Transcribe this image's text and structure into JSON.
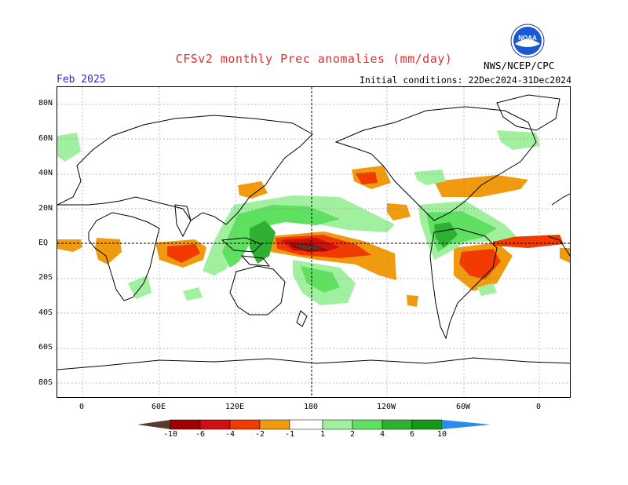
{
  "header": {
    "title": "CFSv2 monthly Prec anomalies (mm/day)",
    "month": "Feb 2025",
    "initial_conditions": "Initial conditions: 22Dec2024-31Dec2024",
    "agency": "NWS/NCEP/CPC",
    "logo_text": "NOAA"
  },
  "axes": {
    "lat_labels": [
      "80N",
      "60N",
      "40N",
      "20N",
      "EQ",
      "20S",
      "40S",
      "60S",
      "80S"
    ],
    "lon_labels": [
      "0",
      "60E",
      "120E",
      "180",
      "120W",
      "60W",
      "0"
    ]
  },
  "colorbar": {
    "labels": [
      "-10",
      "-6",
      "-4",
      "-2",
      "-1",
      "1",
      "2",
      "4",
      "6",
      "10"
    ],
    "colors": [
      "#5a3a2a",
      "#a00000",
      "#d01010",
      "#f03a00",
      "#f09a10",
      "#ffffff",
      "#a0f0a0",
      "#60e060",
      "#30b030",
      "#189818",
      "#2a8af0"
    ]
  },
  "map": {
    "projection": "cylindrical equidistant",
    "grid": "dotted lat/lon lines",
    "reference_lines": [
      "equator",
      "180 meridian"
    ]
  }
}
